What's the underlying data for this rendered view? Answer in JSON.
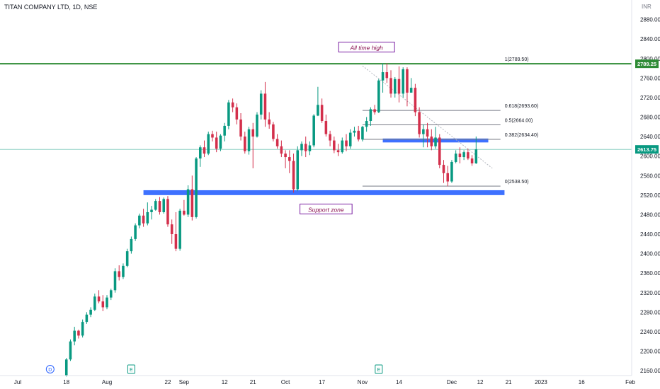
{
  "header": {
    "symbol": "TITAN COMPANY LTD, 1D, NSE",
    "currency": "INR"
  },
  "chart_data": {
    "type": "candlestick",
    "ylim": [
      2150,
      2920
    ],
    "y_ticks": [
      "2880.00",
      "2840.00",
      "2800.00",
      "2760.00",
      "2720.00",
      "2680.00",
      "2640.00",
      "2600.00",
      "2560.00",
      "2520.00",
      "2480.00",
      "2440.00",
      "2400.00",
      "2360.00",
      "2320.00",
      "2280.00",
      "2240.00",
      "2200.00",
      "2160.00"
    ],
    "x_ticks": [
      "Jul",
      "18",
      "Aug",
      "22",
      "Sep",
      "12",
      "21",
      "Oct",
      "17",
      "Nov",
      "14",
      "Dec",
      "12",
      "21",
      "2023",
      "16",
      "Feb"
    ],
    "x_tick_index": [
      0,
      12,
      22,
      37,
      41,
      51,
      58,
      66,
      75,
      85,
      94,
      107,
      114,
      121,
      129,
      139,
      151
    ],
    "index_max": 151,
    "price_tags": [
      {
        "label": "2789.25",
        "value": 2789.25,
        "color": "#2e8b35"
      },
      {
        "label": "2613.75",
        "value": 2613.75,
        "color": "#089981"
      }
    ],
    "lines": {
      "all_time_high": {
        "value": 2789.25,
        "color": "#2e8b35"
      },
      "current_price": {
        "value": 2613.75,
        "color": "#089981"
      }
    },
    "fibonacci": [
      {
        "label": "1(2789.50)",
        "value": 2789.5
      },
      {
        "label": "0.618(2693.60)",
        "value": 2693.6
      },
      {
        "label": "0.5(2664.00)",
        "value": 2664.0
      },
      {
        "label": "0.382(2634.40)",
        "value": 2634.4
      },
      {
        "label": "0(2538.50)",
        "value": 2538.5
      }
    ],
    "fib_range_index": [
      85,
      119
    ],
    "zones": [
      {
        "name": "support",
        "low": 2520,
        "high": 2530,
        "from_index": 31,
        "to_index": 120,
        "color": "#2962ff"
      },
      {
        "name": "resistance",
        "low": 2628,
        "high": 2636,
        "from_index": 90,
        "to_index": 116,
        "color": "#2962ff"
      }
    ],
    "trendline": {
      "from": [
        85,
        2785
      ],
      "to": [
        117,
        2575
      ]
    },
    "annotations": [
      {
        "text": "All time high",
        "index": 86,
        "value": 2822
      },
      {
        "text": "Support zone",
        "index": 76,
        "value": 2490
      }
    ],
    "markers": [
      {
        "letter": "D",
        "index": 8,
        "shape": "circle"
      },
      {
        "letter": "E",
        "index": 28,
        "shape": "square"
      },
      {
        "letter": "E",
        "index": 89,
        "shape": "square"
      }
    ],
    "candles": [
      [
        12,
        2150,
        2186,
        2148,
        2183
      ],
      [
        13,
        2183,
        2224,
        2180,
        2220
      ],
      [
        14,
        2220,
        2250,
        2212,
        2242
      ],
      [
        15,
        2242,
        2244,
        2226,
        2232
      ],
      [
        16,
        2232,
        2265,
        2228,
        2260
      ],
      [
        17,
        2260,
        2280,
        2256,
        2275
      ],
      [
        18,
        2275,
        2290,
        2270,
        2285
      ],
      [
        19,
        2285,
        2318,
        2282,
        2312
      ],
      [
        20,
        2312,
        2325,
        2298,
        2302
      ],
      [
        21,
        2302,
        2315,
        2282,
        2290
      ],
      [
        22,
        2290,
        2315,
        2286,
        2310
      ],
      [
        23,
        2310,
        2328,
        2305,
        2325
      ],
      [
        24,
        2325,
        2370,
        2320,
        2364
      ],
      [
        25,
        2364,
        2376,
        2345,
        2352
      ],
      [
        26,
        2352,
        2380,
        2348,
        2375
      ],
      [
        27,
        2375,
        2410,
        2372,
        2405
      ],
      [
        28,
        2405,
        2435,
        2400,
        2430
      ],
      [
        29,
        2430,
        2462,
        2426,
        2458
      ],
      [
        30,
        2458,
        2482,
        2452,
        2478
      ],
      [
        31,
        2478,
        2492,
        2455,
        2462
      ],
      [
        32,
        2462,
        2505,
        2458,
        2485
      ],
      [
        33,
        2485,
        2498,
        2470,
        2490
      ],
      [
        34,
        2490,
        2512,
        2488,
        2508
      ],
      [
        35,
        2508,
        2516,
        2480,
        2485
      ],
      [
        36,
        2485,
        2515,
        2482,
        2512
      ],
      [
        37,
        2512,
        2518,
        2455,
        2460
      ],
      [
        38,
        2460,
        2470,
        2420,
        2440
      ],
      [
        39,
        2440,
        2485,
        2405,
        2410
      ],
      [
        40,
        2410,
        2492,
        2406,
        2488
      ],
      [
        41,
        2488,
        2510,
        2478,
        2480
      ],
      [
        42,
        2480,
        2540,
        2475,
        2532
      ],
      [
        43,
        2532,
        2560,
        2468,
        2475
      ],
      [
        44,
        2475,
        2598,
        2472,
        2595
      ],
      [
        45,
        2595,
        2622,
        2578,
        2618
      ],
      [
        46,
        2618,
        2632,
        2598,
        2605
      ],
      [
        47,
        2605,
        2650,
        2602,
        2645
      ],
      [
        48,
        2645,
        2652,
        2630,
        2638
      ],
      [
        49,
        2638,
        2650,
        2608,
        2615
      ],
      [
        50,
        2615,
        2645,
        2610,
        2642
      ],
      [
        51,
        2642,
        2668,
        2630,
        2662
      ],
      [
        52,
        2662,
        2715,
        2655,
        2710
      ],
      [
        53,
        2710,
        2718,
        2690,
        2700
      ],
      [
        54,
        2700,
        2708,
        2665,
        2675
      ],
      [
        55,
        2675,
        2688,
        2632,
        2640
      ],
      [
        56,
        2640,
        2650,
        2605,
        2610
      ],
      [
        57,
        2610,
        2660,
        2603,
        2655
      ],
      [
        58,
        2655,
        2668,
        2575,
        2640
      ],
      [
        59,
        2640,
        2690,
        2638,
        2685
      ],
      [
        60,
        2685,
        2735,
        2675,
        2728
      ],
      [
        61,
        2728,
        2752,
        2660,
        2675
      ],
      [
        62,
        2675,
        2690,
        2656,
        2665
      ],
      [
        63,
        2665,
        2670,
        2630,
        2635
      ],
      [
        64,
        2635,
        2645,
        2615,
        2620
      ],
      [
        65,
        2620,
        2632,
        2598,
        2605
      ],
      [
        66,
        2605,
        2612,
        2575,
        2598
      ],
      [
        67,
        2598,
        2612,
        2565,
        2590
      ],
      [
        68,
        2590,
        2605,
        2525,
        2532
      ],
      [
        69,
        2532,
        2620,
        2528,
        2612
      ],
      [
        70,
        2612,
        2630,
        2600,
        2625
      ],
      [
        71,
        2625,
        2640,
        2598,
        2610
      ],
      [
        72,
        2610,
        2630,
        2602,
        2622
      ],
      [
        73,
        2622,
        2686,
        2618,
        2683
      ],
      [
        74,
        2683,
        2742,
        2682,
        2705
      ],
      [
        75,
        2705,
        2718,
        2668,
        2672
      ],
      [
        76,
        2672,
        2685,
        2640,
        2645
      ],
      [
        77,
        2645,
        2652,
        2620,
        2632
      ],
      [
        78,
        2632,
        2640,
        2606,
        2612
      ],
      [
        79,
        2612,
        2625,
        2600,
        2608
      ],
      [
        80,
        2608,
        2638,
        2605,
        2632
      ],
      [
        81,
        2632,
        2645,
        2610,
        2620
      ],
      [
        82,
        2620,
        2655,
        2615,
        2648
      ],
      [
        83,
        2648,
        2660,
        2640,
        2652
      ],
      [
        84,
        2652,
        2662,
        2630,
        2634
      ],
      [
        85,
        2634,
        2662,
        2630,
        2660
      ],
      [
        86,
        2660,
        2680,
        2650,
        2672
      ],
      [
        87,
        2672,
        2700,
        2662,
        2696
      ],
      [
        88,
        2696,
        2705,
        2685,
        2690
      ],
      [
        89,
        2690,
        2758,
        2688,
        2755
      ],
      [
        90,
        2755,
        2790,
        2730,
        2772
      ],
      [
        91,
        2772,
        2790,
        2750,
        2760
      ],
      [
        92,
        2760,
        2776,
        2720,
        2728
      ],
      [
        93,
        2728,
        2762,
        2720,
        2758
      ],
      [
        94,
        2758,
        2784,
        2710,
        2728
      ],
      [
        95,
        2728,
        2782,
        2720,
        2778
      ],
      [
        96,
        2778,
        2782,
        2702,
        2730
      ],
      [
        97,
        2730,
        2760,
        2730,
        2740
      ],
      [
        98,
        2740,
        2748,
        2682,
        2690
      ],
      [
        99,
        2690,
        2700,
        2638,
        2645
      ],
      [
        100,
        2645,
        2665,
        2618,
        2655
      ],
      [
        101,
        2655,
        2668,
        2618,
        2640
      ],
      [
        102,
        2640,
        2655,
        2612,
        2620
      ],
      [
        103,
        2620,
        2660,
        2615,
        2638
      ],
      [
        104,
        2638,
        2645,
        2575,
        2582
      ],
      [
        105,
        2582,
        2592,
        2545,
        2565
      ],
      [
        106,
        2565,
        2580,
        2538,
        2548
      ],
      [
        107,
        2548,
        2592,
        2545,
        2588
      ],
      [
        108,
        2588,
        2612,
        2585,
        2605
      ],
      [
        109,
        2605,
        2618,
        2585,
        2598
      ],
      [
        110,
        2598,
        2612,
        2592,
        2608
      ],
      [
        111,
        2608,
        2615,
        2592,
        2595
      ],
      [
        112,
        2595,
        2602,
        2580,
        2585
      ],
      [
        113,
        2585,
        2640,
        2584,
        2613.75
      ]
    ]
  }
}
